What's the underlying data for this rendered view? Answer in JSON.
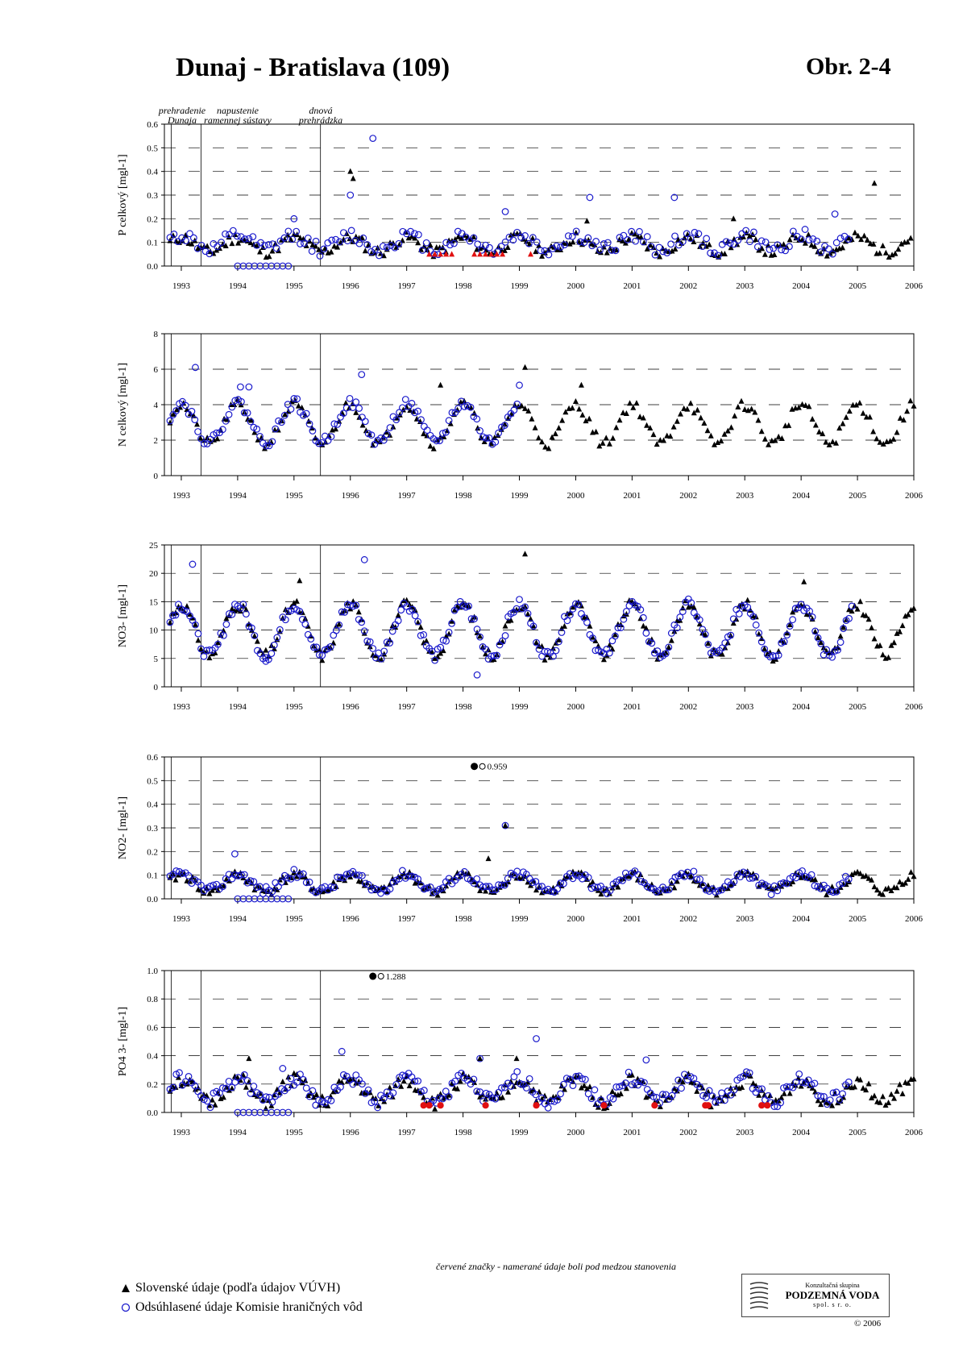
{
  "header": {
    "title": "Dunaj - Bratislava (109)",
    "figure_label": "Obr. 2-4"
  },
  "events": [
    {
      "label": "prehradenie\nDunaja",
      "date": 1992.82
    },
    {
      "label": "napustenie\nramennej sústavy",
      "date": 1993.35
    },
    {
      "label": "dnová\nprehrádzka",
      "date": 1995.47
    }
  ],
  "footnote": "červené značky - namerané údaje boli pod medzou stanovenia",
  "legend": {
    "triangle_label": "Slovenské údaje (podľa údajov VÚVH)",
    "circle_label": "Odsúhlasené údaje Komisie hraničných vôd"
  },
  "logo": {
    "top_text": "Konzultačná skupina",
    "main_text": "PODZEMNÁ VODA",
    "bottom_text": "spol. s r. o."
  },
  "copyright": "© 2006",
  "colors": {
    "triangle": "#000000",
    "circle": "#1a1acc",
    "below_detection": "#e01010"
  },
  "chart_data": [
    {
      "type": "scatter",
      "ylabel": "P celkový [mgl-1]",
      "ylim": [
        0,
        0.6
      ],
      "yticks": [
        "0.0",
        "0.1",
        "0.2",
        "0.3",
        "0.4",
        "0.5",
        "0.6"
      ],
      "x_tick_labels": [
        "1993",
        "1994",
        "1995",
        "1996",
        "1997",
        "1998",
        "1999",
        "2000",
        "2001",
        "2002",
        "2003",
        "2004",
        "2005",
        "2006"
      ],
      "xlim": [
        1992.7,
        2006.0
      ],
      "grid": "dashed horizontal",
      "series": [
        {
          "name": "Slovenské údaje (podľa údajov VÚVH)",
          "marker": "triangle",
          "model": {
            "base": 0.09,
            "amp": 0.03,
            "phase": 0.0,
            "noise": 0.025,
            "step": 0.055,
            "start": 1992.8,
            "end": 2006.0,
            "seed": 11
          }
        },
        {
          "name": "Odsúhlasené údaje Komisie hraničných vôd",
          "marker": "circle",
          "model": {
            "base": 0.1,
            "amp": 0.03,
            "phase": 0.0,
            "noise": 0.03,
            "step": 0.07,
            "start": 1992.8,
            "end": 2004.9,
            "seed": 12
          }
        },
        {
          "name": "below detection",
          "marker": "triangle-red",
          "points": [
            [
              1997.4,
              0.05
            ],
            [
              1997.5,
              0.05
            ],
            [
              1997.6,
              0.05
            ],
            [
              1997.7,
              0.05
            ],
            [
              1997.8,
              0.05
            ],
            [
              1998.2,
              0.05
            ],
            [
              1998.3,
              0.05
            ],
            [
              1998.4,
              0.05
            ],
            [
              1998.5,
              0.05
            ],
            [
              1998.6,
              0.05
            ],
            [
              1998.7,
              0.05
            ],
            [
              1999.2,
              0.05
            ]
          ]
        },
        {
          "name": "zero values",
          "marker": "circle",
          "points": [
            [
              1994.0,
              0.0
            ],
            [
              1994.1,
              0.0
            ],
            [
              1994.2,
              0.0
            ],
            [
              1994.3,
              0.0
            ],
            [
              1994.4,
              0.0
            ],
            [
              1994.5,
              0.0
            ],
            [
              1994.6,
              0.0
            ],
            [
              1994.7,
              0.0
            ],
            [
              1994.8,
              0.0
            ],
            [
              1994.9,
              0.0
            ]
          ]
        },
        {
          "name": "peaks",
          "marker": "circle",
          "points": [
            [
              1996.4,
              0.54
            ],
            [
              1996.0,
              0.3
            ],
            [
              1995.0,
              0.2
            ],
            [
              2000.25,
              0.29
            ],
            [
              2001.75,
              0.29
            ],
            [
              1998.75,
              0.23
            ],
            [
              2004.6,
              0.22
            ]
          ]
        },
        {
          "name": "peaks",
          "marker": "triangle",
          "points": [
            [
              1996.0,
              0.4
            ],
            [
              1996.05,
              0.37
            ],
            [
              2005.3,
              0.35
            ],
            [
              2000.2,
              0.19
            ],
            [
              2002.8,
              0.2
            ]
          ]
        }
      ]
    },
    {
      "type": "scatter",
      "ylabel": "N celkový [mgl-1]",
      "ylim": [
        0,
        8
      ],
      "yticks": [
        "0",
        "2",
        "4",
        "6",
        "8"
      ],
      "x_tick_labels": [
        "1993",
        "1994",
        "1995",
        "1996",
        "1997",
        "1998",
        "1999",
        "2000",
        "2001",
        "2002",
        "2003",
        "2004",
        "2005",
        "2006"
      ],
      "xlim": [
        1992.7,
        2006.0
      ],
      "grid": "dashed horizontal",
      "series": [
        {
          "name": "Slovenské údaje (podľa údajov VÚVH)",
          "marker": "triangle",
          "model": {
            "base": 2.9,
            "amp": 1.1,
            "phase": 0.0,
            "noise": 0.3,
            "step": 0.06,
            "start": 1992.8,
            "end": 2006.0,
            "seed": 21
          }
        },
        {
          "name": "Odsúhlasené údaje Komisie hraničných vôd",
          "marker": "circle",
          "model": {
            "base": 3.0,
            "amp": 1.1,
            "phase": 0.0,
            "noise": 0.3,
            "step": 0.055,
            "start": 1992.8,
            "end": 1999.0,
            "seed": 22
          }
        },
        {
          "name": "peaks",
          "marker": "circle",
          "points": [
            [
              1993.25,
              6.1
            ],
            [
              1996.2,
              5.7
            ],
            [
              1994.05,
              5.0
            ],
            [
              1994.2,
              5.0
            ],
            [
              1999.0,
              5.1
            ]
          ]
        },
        {
          "name": "peaks",
          "marker": "triangle",
          "points": [
            [
              1999.1,
              6.1
            ],
            [
              1997.6,
              5.1
            ],
            [
              2000.1,
              5.1
            ]
          ]
        }
      ]
    },
    {
      "type": "scatter",
      "ylabel": "NO3- [mgl-1]",
      "ylim": [
        0,
        25
      ],
      "yticks": [
        "0",
        "5",
        "10",
        "15",
        "20",
        "25"
      ],
      "x_tick_labels": [
        "1993",
        "1994",
        "1995",
        "1996",
        "1997",
        "1998",
        "1999",
        "2000",
        "2001",
        "2002",
        "2003",
        "2004",
        "2005",
        "2006"
      ],
      "xlim": [
        1992.7,
        2006.0
      ],
      "grid": "dashed horizontal",
      "series": [
        {
          "name": "Slovenské údaje (podľa údajov VÚVH)",
          "marker": "triangle",
          "model": {
            "base": 10,
            "amp": 4.5,
            "phase": 0.0,
            "noise": 1.0,
            "step": 0.05,
            "start": 1992.8,
            "end": 2006.0,
            "seed": 31
          }
        },
        {
          "name": "Odsúhlasené údaje Komisie hraničných vôd",
          "marker": "circle",
          "model": {
            "base": 10,
            "amp": 4.5,
            "phase": 0.0,
            "noise": 1.0,
            "step": 0.05,
            "start": 1992.8,
            "end": 2004.9,
            "seed": 32
          }
        },
        {
          "name": "peaks",
          "marker": "circle",
          "points": [
            [
              1993.2,
              21.6
            ],
            [
              1996.25,
              22.4
            ],
            [
              1998.25,
              2.1
            ],
            [
              1994.5,
              4.5
            ]
          ]
        },
        {
          "name": "peaks",
          "marker": "triangle",
          "points": [
            [
              1999.1,
              23.4
            ],
            [
              1995.1,
              18.7
            ],
            [
              2004.05,
              18.5
            ]
          ]
        }
      ]
    },
    {
      "type": "scatter",
      "ylabel": "NO2- [mgl-1]",
      "ylim": [
        0,
        0.6
      ],
      "yticks": [
        "0.0",
        "0.1",
        "0.2",
        "0.3",
        "0.4",
        "0.5",
        "0.6"
      ],
      "x_tick_labels": [
        "1993",
        "1994",
        "1995",
        "1996",
        "1997",
        "1998",
        "1999",
        "2000",
        "2001",
        "2002",
        "2003",
        "2004",
        "2005",
        "2006"
      ],
      "xlim": [
        1992.7,
        2006.0
      ],
      "grid": "dashed horizontal",
      "annotation": {
        "text": "0.959",
        "x": 1998.2,
        "y": 0.56
      },
      "series": [
        {
          "name": "Slovenské údaje (podľa údajov VÚVH)",
          "marker": "triangle",
          "model": {
            "base": 0.065,
            "amp": 0.035,
            "phase": 0.0,
            "noise": 0.02,
            "step": 0.05,
            "start": 1992.8,
            "end": 2006.0,
            "seed": 41
          }
        },
        {
          "name": "Odsúhlasené údaje Komisie hraničných vôd",
          "marker": "circle",
          "model": {
            "base": 0.07,
            "amp": 0.035,
            "phase": 0.0,
            "noise": 0.02,
            "step": 0.055,
            "start": 1992.8,
            "end": 2004.9,
            "seed": 42
          }
        },
        {
          "name": "zero values",
          "marker": "circle",
          "points": [
            [
              1994.0,
              0.0
            ],
            [
              1994.1,
              0.0
            ],
            [
              1994.2,
              0.0
            ],
            [
              1994.3,
              0.0
            ],
            [
              1994.4,
              0.0
            ],
            [
              1994.5,
              0.0
            ],
            [
              1994.6,
              0.0
            ],
            [
              1994.7,
              0.0
            ],
            [
              1994.8,
              0.0
            ],
            [
              1994.9,
              0.0
            ]
          ]
        },
        {
          "name": "peaks",
          "marker": "circle",
          "points": [
            [
              1998.75,
              0.31
            ],
            [
              1993.95,
              0.19
            ]
          ]
        },
        {
          "name": "peaks",
          "marker": "triangle",
          "points": [
            [
              1998.75,
              0.31
            ],
            [
              1998.45,
              0.17
            ]
          ]
        }
      ]
    },
    {
      "type": "scatter",
      "ylabel": "PO4 3- [mgl-1]",
      "ylim": [
        0,
        1.0
      ],
      "yticks": [
        "0.0",
        "0.2",
        "0.4",
        "0.6",
        "0.8",
        "1.0"
      ],
      "x_tick_labels": [
        "1993",
        "1994",
        "1995",
        "1996",
        "1997",
        "1998",
        "1999",
        "2000",
        "2001",
        "2002",
        "2003",
        "2004",
        "2005",
        "2006"
      ],
      "xlim": [
        1992.7,
        2006.0
      ],
      "grid": "dashed horizontal",
      "annotation": {
        "text": "1.288",
        "x": 1996.4,
        "y": 0.96
      },
      "series": [
        {
          "name": "Slovenské údaje (podľa údajov VÚVH)",
          "marker": "triangle",
          "model": {
            "base": 0.15,
            "amp": 0.08,
            "phase": 0.0,
            "noise": 0.05,
            "step": 0.05,
            "start": 1992.8,
            "end": 2006.0,
            "seed": 51
          }
        },
        {
          "name": "Odsúhlasené údaje Komisie hraničných vôd",
          "marker": "circle",
          "model": {
            "base": 0.16,
            "amp": 0.08,
            "phase": 0.0,
            "noise": 0.05,
            "step": 0.055,
            "start": 1992.8,
            "end": 2004.9,
            "seed": 52
          }
        },
        {
          "name": "zero values",
          "marker": "circle",
          "points": [
            [
              1994.0,
              0.0
            ],
            [
              1994.1,
              0.0
            ],
            [
              1994.2,
              0.0
            ],
            [
              1994.3,
              0.0
            ],
            [
              1994.4,
              0.0
            ],
            [
              1994.5,
              0.0
            ],
            [
              1994.6,
              0.0
            ],
            [
              1994.7,
              0.0
            ],
            [
              1994.8,
              0.0
            ],
            [
              1994.9,
              0.0
            ]
          ]
        },
        {
          "name": "below detection",
          "marker": "circle-red",
          "points": [
            [
              1997.3,
              0.05
            ],
            [
              1997.4,
              0.05
            ],
            [
              1997.6,
              0.05
            ],
            [
              1998.4,
              0.05
            ],
            [
              1999.3,
              0.05
            ],
            [
              2000.5,
              0.05
            ],
            [
              2001.4,
              0.05
            ],
            [
              2002.3,
              0.05
            ],
            [
              2002.35,
              0.05
            ],
            [
              2003.3,
              0.05
            ],
            [
              2003.4,
              0.05
            ]
          ]
        },
        {
          "name": "peaks",
          "marker": "circle",
          "points": [
            [
              1999.3,
              0.52
            ],
            [
              1995.85,
              0.43
            ],
            [
              2001.25,
              0.37
            ],
            [
              1998.3,
              0.38
            ],
            [
              1994.8,
              0.31
            ]
          ]
        },
        {
          "name": "peaks",
          "marker": "triangle",
          "points": [
            [
              1998.3,
              0.38
            ],
            [
              1998.95,
              0.38
            ],
            [
              1994.2,
              0.38
            ]
          ]
        }
      ]
    }
  ]
}
